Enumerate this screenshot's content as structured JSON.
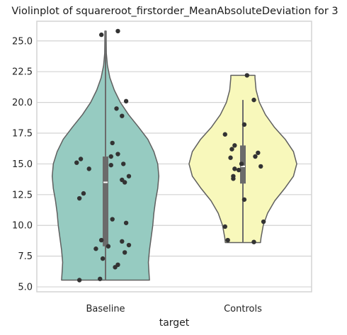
{
  "chart_data": {
    "type": "violin",
    "title": "Violinplot of squareroot_firstorder_MeanAbsoluteDeviation for 3",
    "xlabel": "target",
    "ylabel": "",
    "ylim": [
      4.6,
      26.6
    ],
    "yticks": [
      5.0,
      7.5,
      10.0,
      12.5,
      15.0,
      17.5,
      20.0,
      22.5,
      25.0
    ],
    "ytick_labels": [
      "5.0",
      "7.5",
      "10.0",
      "12.5",
      "15.0",
      "17.5",
      "20.0",
      "22.5",
      "25.0"
    ],
    "categories": [
      "Baseline",
      "Controls"
    ],
    "grid": "horizontal",
    "colors": {
      "Baseline": "#96cbc1",
      "Controls": "#f8f8bb",
      "outline": "#5f5f5f",
      "points": "#333333",
      "box": "#6b6b6b",
      "grid": "#d3d3d3",
      "frame": "#d3d3d3"
    },
    "groups": [
      {
        "name": "Baseline",
        "min": 5.55,
        "max": 25.8,
        "q1": 8.3,
        "median": 13.5,
        "q3": 15.6,
        "whisker_low": 5.55,
        "whisker_high": 25.8,
        "density": [
          [
            5.55,
            0.8
          ],
          [
            6.2,
            0.79
          ],
          [
            7.0,
            0.78
          ],
          [
            8.0,
            0.8
          ],
          [
            9.0,
            0.83
          ],
          [
            10.0,
            0.86
          ],
          [
            11.0,
            0.88
          ],
          [
            12.0,
            0.91
          ],
          [
            13.0,
            0.95
          ],
          [
            14.0,
            0.97
          ],
          [
            15.0,
            0.95
          ],
          [
            16.0,
            0.88
          ],
          [
            17.0,
            0.77
          ],
          [
            18.0,
            0.6
          ],
          [
            19.0,
            0.42
          ],
          [
            20.0,
            0.27
          ],
          [
            21.0,
            0.16
          ],
          [
            22.0,
            0.08
          ],
          [
            23.0,
            0.035
          ],
          [
            24.0,
            0.015
          ],
          [
            25.0,
            0.012
          ],
          [
            25.8,
            0.012
          ]
        ],
        "points": [
          [
            -0.03,
            25.5
          ],
          [
            0.09,
            25.8
          ],
          [
            0.15,
            20.1
          ],
          [
            0.08,
            19.5
          ],
          [
            0.12,
            18.9
          ],
          [
            0.05,
            16.7
          ],
          [
            0.09,
            15.8
          ],
          [
            0.04,
            15.6
          ],
          [
            -0.18,
            15.4
          ],
          [
            -0.21,
            15.1
          ],
          [
            0.13,
            15.0
          ],
          [
            0.04,
            14.9
          ],
          [
            -0.12,
            14.6
          ],
          [
            0.17,
            14.0
          ],
          [
            0.12,
            13.7
          ],
          [
            0.14,
            13.5
          ],
          [
            -0.16,
            12.6
          ],
          [
            -0.19,
            12.2
          ],
          [
            0.05,
            10.5
          ],
          [
            0.15,
            10.2
          ],
          [
            -0.03,
            8.8
          ],
          [
            0.12,
            8.7
          ],
          [
            0.17,
            8.4
          ],
          [
            0.02,
            8.3
          ],
          [
            -0.07,
            8.1
          ],
          [
            0.14,
            7.8
          ],
          [
            -0.02,
            7.3
          ],
          [
            0.09,
            6.8
          ],
          [
            0.07,
            6.6
          ],
          [
            -0.19,
            5.55
          ],
          [
            -0.04,
            5.65
          ]
        ]
      },
      {
        "name": "Controls",
        "min": 8.6,
        "max": 22.2,
        "q1": 13.4,
        "median": 14.8,
        "q3": 16.5,
        "whisker_low": 8.6,
        "whisker_high": 20.2,
        "density": [
          [
            8.6,
            0.32
          ],
          [
            9.0,
            0.33
          ],
          [
            10.0,
            0.37
          ],
          [
            11.0,
            0.45
          ],
          [
            12.0,
            0.58
          ],
          [
            13.0,
            0.76
          ],
          [
            14.0,
            0.92
          ],
          [
            15.0,
            0.98
          ],
          [
            16.0,
            0.92
          ],
          [
            17.0,
            0.77
          ],
          [
            18.0,
            0.57
          ],
          [
            19.0,
            0.41
          ],
          [
            20.0,
            0.3
          ],
          [
            21.0,
            0.24
          ],
          [
            22.0,
            0.22
          ],
          [
            22.2,
            0.22
          ]
        ],
        "points": [
          [
            0.03,
            22.2
          ],
          [
            0.08,
            20.2
          ],
          [
            0.01,
            18.2
          ],
          [
            -0.13,
            17.4
          ],
          [
            0.11,
            15.9
          ],
          [
            0.09,
            15.6
          ],
          [
            -0.06,
            16.5
          ],
          [
            -0.08,
            16.2
          ],
          [
            -0.09,
            15.5
          ],
          [
            -0.01,
            15.0
          ],
          [
            0.13,
            14.8
          ],
          [
            -0.06,
            14.6
          ],
          [
            -0.03,
            14.5
          ],
          [
            -0.07,
            14.0
          ],
          [
            -0.07,
            13.8
          ],
          [
            0.01,
            12.1
          ],
          [
            0.15,
            10.3
          ],
          [
            -0.13,
            9.9
          ],
          [
            -0.11,
            8.8
          ],
          [
            0.08,
            8.65
          ]
        ]
      }
    ]
  }
}
